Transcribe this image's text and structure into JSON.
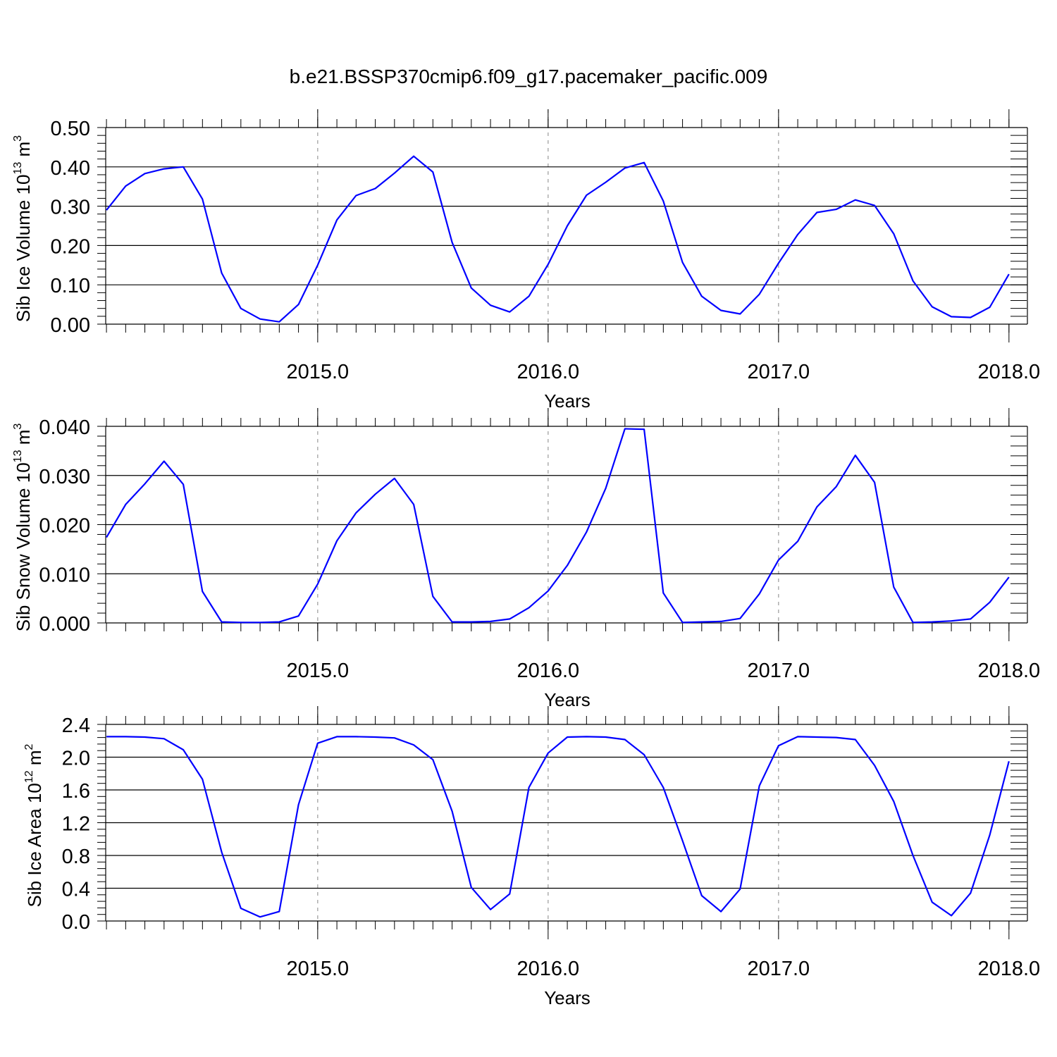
{
  "title": "b.e21.BSSP370cmip6.f09_g17.pacemaker_pacific.009",
  "colors": {
    "line": "#0000ff",
    "axis": "#000000",
    "grid": "#9a9a9a"
  },
  "chart_data": [
    {
      "type": "line",
      "id": "ice-volume",
      "ylabel": "Sib Ice Volume 10",
      "ylabel_exp": "13",
      "ylabel_unit": " m",
      "ylabel_unit_exp": "3",
      "xlabel": "Years",
      "xlim": [
        2014.08,
        2018.08
      ],
      "ylim": [
        0,
        0.5
      ],
      "yticks": [
        0,
        0.1,
        0.2,
        0.3,
        0.4,
        0.5
      ],
      "ytick_labels": [
        "0.00",
        "0.10",
        "0.20",
        "0.30",
        "0.40",
        "0.50"
      ],
      "yminor_step": 0.02,
      "xticks": [
        2015,
        2016,
        2017,
        2018
      ],
      "xtick_labels": [
        "2015.0",
        "2016.0",
        "2017.0",
        "2018.0"
      ],
      "xminor_step": 0.0833333,
      "grid_x": [
        2015,
        2016,
        2017
      ],
      "x_start": 2014.0833,
      "x_step": 0.0833333,
      "values": [
        0.29,
        0.351,
        0.383,
        0.395,
        0.4,
        0.318,
        0.13,
        0.04,
        0.013,
        0.006,
        0.05,
        0.15,
        0.265,
        0.327,
        0.345,
        0.384,
        0.427,
        0.387,
        0.208,
        0.092,
        0.048,
        0.031,
        0.071,
        0.152,
        0.25,
        0.328,
        0.361,
        0.397,
        0.411,
        0.313,
        0.157,
        0.071,
        0.035,
        0.026,
        0.076,
        0.155,
        0.228,
        0.284,
        0.292,
        0.316,
        0.302,
        0.23,
        0.11,
        0.044,
        0.019,
        0.017,
        0.043,
        0.127
      ]
    },
    {
      "type": "line",
      "id": "snow-volume",
      "ylabel": "Sib Snow Volume 10",
      "ylabel_exp": "13",
      "ylabel_unit": " m",
      "ylabel_unit_exp": "3",
      "xlabel": "Years",
      "xlim": [
        2014.08,
        2018.08
      ],
      "ylim": [
        0,
        0.04
      ],
      "yticks": [
        0,
        0.01,
        0.02,
        0.03,
        0.04
      ],
      "ytick_labels": [
        "0.000",
        "0.010",
        "0.020",
        "0.030",
        "0.040"
      ],
      "yminor_step": 0.002,
      "xticks": [
        2015,
        2016,
        2017,
        2018
      ],
      "xtick_labels": [
        "2015.0",
        "2016.0",
        "2017.0",
        "2018.0"
      ],
      "xminor_step": 0.0833333,
      "grid_x": [
        2015,
        2016,
        2017
      ],
      "x_start": 2014.0833,
      "x_step": 0.0833333,
      "values": [
        0.0174,
        0.0241,
        0.0283,
        0.0329,
        0.0282,
        0.0064,
        0.0002,
        0.0001,
        0.0001,
        0.0002,
        0.0014,
        0.0079,
        0.0167,
        0.0224,
        0.0262,
        0.0294,
        0.0241,
        0.0054,
        0.0002,
        0.0002,
        0.0003,
        0.0008,
        0.0031,
        0.0065,
        0.0117,
        0.0185,
        0.0274,
        0.0395,
        0.0394,
        0.0061,
        0.0001,
        0.0002,
        0.0003,
        0.0009,
        0.0059,
        0.0128,
        0.0166,
        0.0236,
        0.0277,
        0.0341,
        0.0286,
        0.0073,
        0.0001,
        0.0002,
        0.0004,
        0.0008,
        0.0042,
        0.0093
      ]
    },
    {
      "type": "line",
      "id": "ice-area",
      "ylabel": "Sib Ice Area 10",
      "ylabel_exp": "12",
      "ylabel_unit": " m",
      "ylabel_unit_exp": "2",
      "xlabel": "Years",
      "xlim": [
        2014.08,
        2018.08
      ],
      "ylim": [
        0,
        2.4
      ],
      "yticks": [
        0,
        0.4,
        0.8,
        1.2,
        1.6,
        2.0,
        2.4
      ],
      "ytick_labels": [
        "0.0",
        "0.4",
        "0.8",
        "1.2",
        "1.6",
        "2.0",
        "2.4"
      ],
      "yminor_step": 0.08,
      "xticks": [
        2015,
        2016,
        2017,
        2018
      ],
      "xtick_labels": [
        "2015.0",
        "2016.0",
        "2017.0",
        "2018.0"
      ],
      "xminor_step": 0.0833333,
      "grid_x": [
        2015,
        2016,
        2017
      ],
      "x_start": 2014.0833,
      "x_step": 0.0833333,
      "values": [
        2.25,
        2.25,
        2.245,
        2.225,
        2.09,
        1.73,
        0.84,
        0.155,
        0.05,
        0.115,
        1.42,
        2.17,
        2.25,
        2.25,
        2.245,
        2.235,
        2.15,
        1.97,
        1.34,
        0.41,
        0.14,
        0.33,
        1.63,
        2.05,
        2.245,
        2.25,
        2.245,
        2.215,
        2.03,
        1.63,
        0.98,
        0.31,
        0.115,
        0.39,
        1.65,
        2.14,
        2.25,
        2.245,
        2.24,
        2.215,
        1.9,
        1.46,
        0.8,
        0.23,
        0.065,
        0.34,
        1.05,
        1.95
      ]
    }
  ]
}
